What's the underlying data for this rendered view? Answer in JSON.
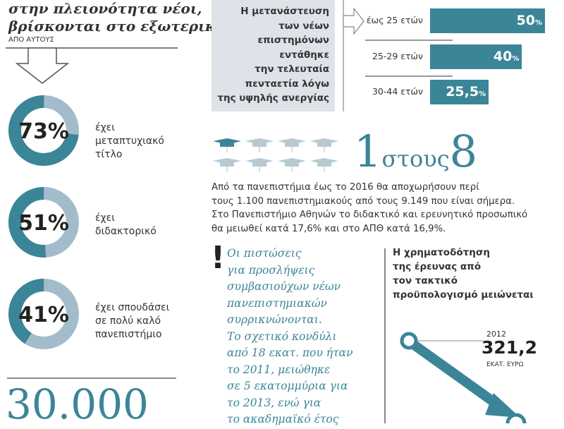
{
  "title_lines": [
    "στην πλειονότητα νέοι,",
    "βρίσκονται στο εξωτερικό."
  ],
  "from_them": "ΑΠΟ ΑΥΤΟΥΣ",
  "colors": {
    "teal": "#3b8598",
    "light": "#a3bccb",
    "box": "#dde3e8"
  },
  "big_number": "30.000",
  "migration_box": [
    "Η μετανάστευση",
    "των νέων",
    "επιστημόνων",
    "εντάθηκε",
    "την τελευταία",
    "πενταετία λόγω",
    "της υψηλής ανεργίας"
  ],
  "ratio": {
    "one": "1",
    "word": "στους",
    "eight": "8"
  },
  "paragraph": [
    "Από τα πανεπιστήμια έως το 2016 θα αποχωρήσουν περί",
    "τους 1.100 πανεπιστημιακούς από τους 9.149 που είναι σήμερα.",
    "Στο Πανεπιστήμιο Αθηνών το διδακτικό και ερευνητικό προσωπικό",
    "θα μειωθεί κατά 17,6% και στο ΑΠΘ κατά 16,9%."
  ],
  "exclamation": "!",
  "italic_text": [
    "Οι πιστώσεις",
    "για προσλήψεις",
    "συμβασιούχων νέων",
    "πανεπιστημιακών",
    "συρρικνώνονται.",
    "Το σχετικό κονδύλι",
    "από 18 εκατ. που ήταν",
    "το 2011, μειώθηκε",
    "σε 5 εκατομμύρια για",
    "το 2013, ενώ για",
    "το ακαδημαϊκό έτος"
  ],
  "funding_heading": [
    "Η χρηματοδότηση",
    "της έρευνας από",
    "τον τακτικό",
    "προϋπολογισμό μειώνεται"
  ],
  "chart_data": [
    {
      "type": "pie",
      "variant": "donut",
      "values": [
        73
      ],
      "labels": [
        "73%"
      ],
      "caption": [
        "έχει",
        "μεταπτυχιακό",
        "τίτλο"
      ]
    },
    {
      "type": "pie",
      "variant": "donut",
      "values": [
        51
      ],
      "labels": [
        "51%"
      ],
      "caption": [
        "έχει",
        "διδακτορικό"
      ]
    },
    {
      "type": "pie",
      "variant": "donut",
      "values": [
        41
      ],
      "labels": [
        "41%"
      ],
      "caption": [
        "έχει σπουδάσει",
        "σε πολύ καλό",
        "πανεπιστήμιο"
      ]
    },
    {
      "type": "bar",
      "orientation": "horizontal",
      "categories": [
        "έως 25 ετών",
        "25-29 ετών",
        "30-44 ετών"
      ],
      "values": [
        50,
        40,
        25.5
      ],
      "labels": [
        "50",
        "40",
        "25,5"
      ],
      "unit": "%"
    },
    {
      "type": "pictogram",
      "total": 8,
      "highlighted": 1
    },
    {
      "type": "line",
      "points": [
        {
          "year": "2012",
          "value": "321,2",
          "unit": "ΕΚΑΤ. ΕΥΡΩ"
        }
      ]
    }
  ]
}
